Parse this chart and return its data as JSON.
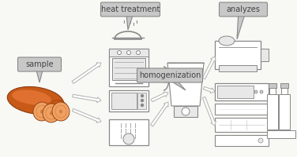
{
  "bg_color": "#f8f8f4",
  "label_sample": "sample",
  "label_heat": "heat treatment",
  "label_homogenization": "homogenization",
  "label_analyzes": "analyzes",
  "lc": "#888888",
  "fc_light": "#e8e8e8",
  "fc_gray": "#c8c8c8",
  "arrow_color": "#b0b0b0",
  "sweet_potato_main": "#c85a18",
  "sweet_potato_light": "#e07030",
  "sweet_potato_slice": "#f0a060",
  "sweet_potato_ring": "#d08040",
  "sweet_potato_edge": "#8b3a0f"
}
